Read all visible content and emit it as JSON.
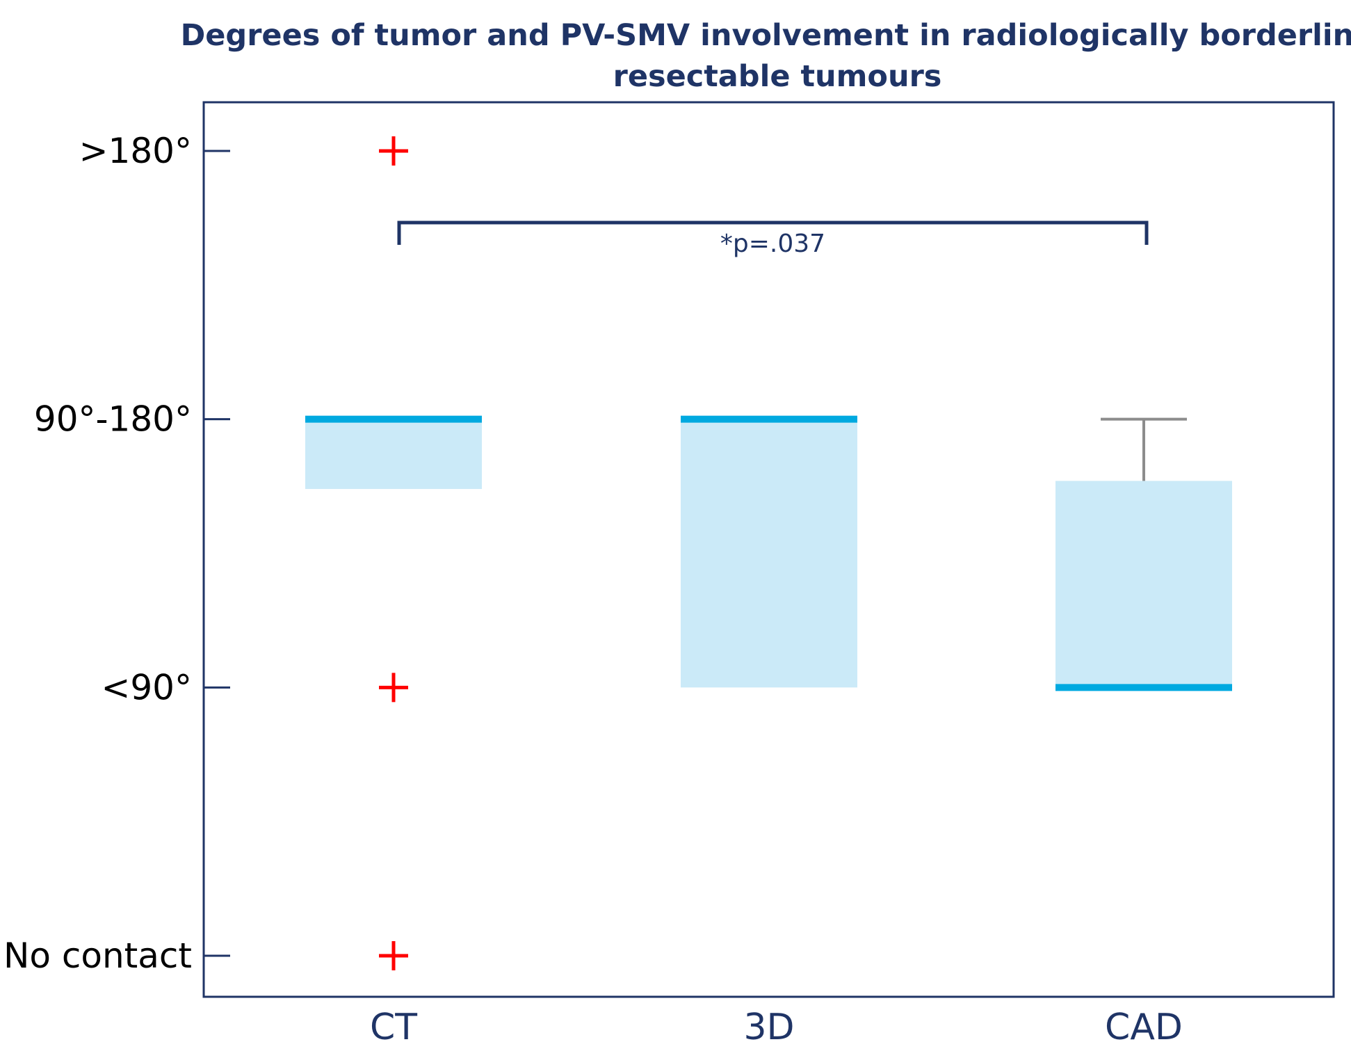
{
  "chart_data": {
    "type": "box",
    "title": "Degrees of tumor and PV-SMV involvement in radiologically borderline resectable tumours",
    "title_lines": [
      "Degrees of tumor and PV-SMV involvement in radiologically borderline",
      "resectable tumours"
    ],
    "xlabel": "",
    "ylabel": "",
    "y_ordinal_scale": [
      0,
      1,
      2,
      3
    ],
    "y_tick_labels": [
      "No contact",
      "<90°",
      "90°-180°",
      ">180°"
    ],
    "ylim": [
      -0.15,
      3.18
    ],
    "categories": [
      "CT",
      "3D",
      "CAD"
    ],
    "boxes": [
      {
        "category": "CT",
        "q1": 1.74,
        "median": 2.0,
        "q3": 2.0,
        "whisker_low": null,
        "whisker_high": null,
        "outliers": [
          3,
          1,
          0
        ]
      },
      {
        "category": "3D",
        "q1": 1.0,
        "median": 2.0,
        "q3": 2.0,
        "whisker_low": null,
        "whisker_high": null,
        "outliers": []
      },
      {
        "category": "CAD",
        "q1": 1.0,
        "median": 1.0,
        "q3": 1.77,
        "whisker_low": null,
        "whisker_high": 2.0,
        "outliers": []
      }
    ],
    "significance": {
      "from": "CT",
      "to": "CAD",
      "label": "*p=.037"
    },
    "colors": {
      "box_fill": "#cbeaf8",
      "median": "#00a9e0",
      "whisker": "#8c8c8c",
      "outlier": "#ff0000",
      "frame": "#1f3466",
      "title": "#1f3466"
    }
  }
}
